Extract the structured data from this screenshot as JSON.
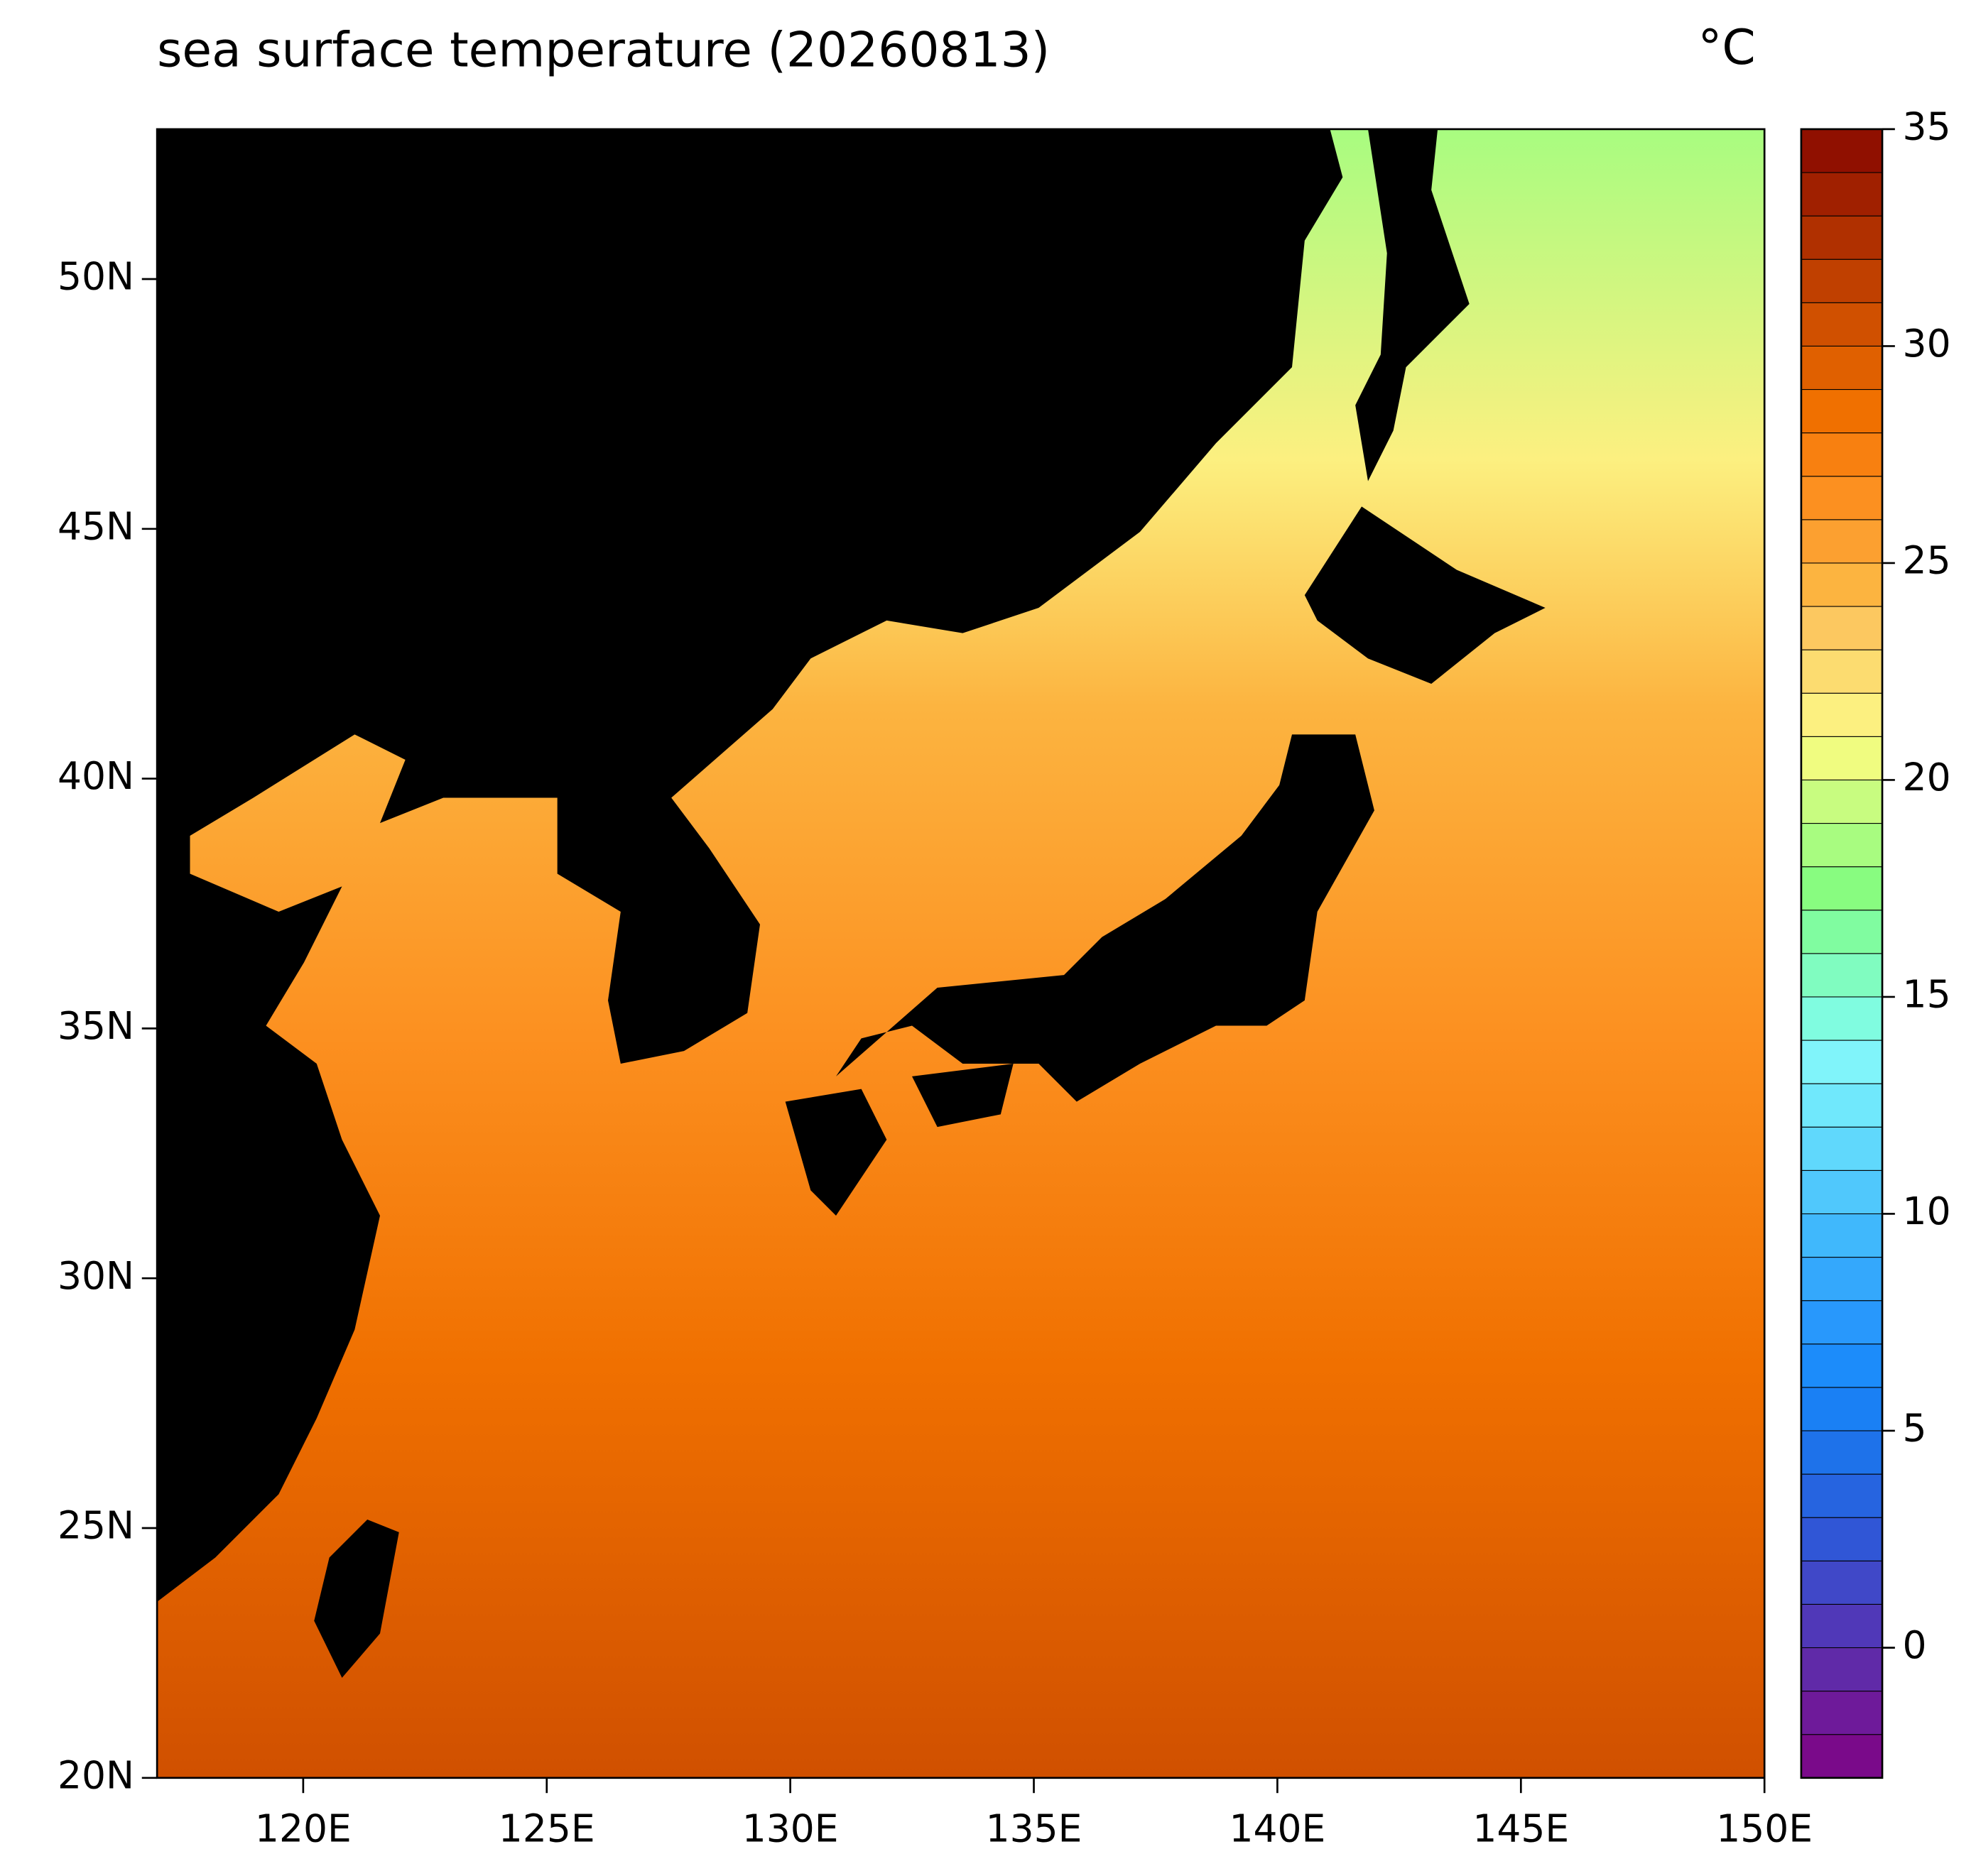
{
  "chart_data": {
    "type": "contour-map",
    "title": "sea surface temperature (20260813)",
    "unit": "°C",
    "xlim": [
      117,
      150
    ],
    "ylim": [
      20,
      53
    ],
    "xticks": [
      {
        "value": 120,
        "label": "120E"
      },
      {
        "value": 125,
        "label": "125E"
      },
      {
        "value": 130,
        "label": "130E"
      },
      {
        "value": 135,
        "label": "135E"
      },
      {
        "value": 140,
        "label": "140E"
      },
      {
        "value": 145,
        "label": "145E"
      },
      {
        "value": 150,
        "label": "150E"
      }
    ],
    "yticks": [
      {
        "value": 20,
        "label": "20N"
      },
      {
        "value": 25,
        "label": "25N"
      },
      {
        "value": 30,
        "label": "30N"
      },
      {
        "value": 35,
        "label": "35N"
      },
      {
        "value": 40,
        "label": "40N"
      },
      {
        "value": 45,
        "label": "45N"
      },
      {
        "value": 50,
        "label": "50N"
      }
    ],
    "land_color": "#000000",
    "colorbar": {
      "levels": [
        -3,
        -2,
        -1,
        0,
        1,
        2,
        3,
        4,
        5,
        6,
        7,
        8,
        9,
        10,
        11,
        12,
        13,
        14,
        15,
        16,
        17,
        18,
        19,
        20,
        21,
        22,
        23,
        24,
        25,
        26,
        27,
        28,
        29,
        30,
        31,
        32,
        33,
        34,
        35
      ],
      "ticks": [
        0,
        5,
        10,
        15,
        20,
        25,
        30,
        35
      ],
      "colors": [
        "#7a0a8a",
        "#6e1a9a",
        "#602aa8",
        "#5038b8",
        "#4048c8",
        "#3056d6",
        "#2664e0",
        "#1e72ea",
        "#1a80f4",
        "#1c8cfa",
        "#2898fc",
        "#34a8fc",
        "#40b8fc",
        "#50c8fc",
        "#60d8fc",
        "#70e8fc",
        "#80f4fa",
        "#80fce0",
        "#80fcc0",
        "#80fca0",
        "#88fc80",
        "#a8fc80",
        "#c8fc80",
        "#f0fc80",
        "#fcf080",
        "#fcdc70",
        "#fcc860",
        "#fcb440",
        "#fca030",
        "#fc9020",
        "#f88010",
        "#f07000",
        "#e06000",
        "#d05000",
        "#c04000",
        "#b03000",
        "#a02000",
        "#901000"
      ]
    }
  }
}
